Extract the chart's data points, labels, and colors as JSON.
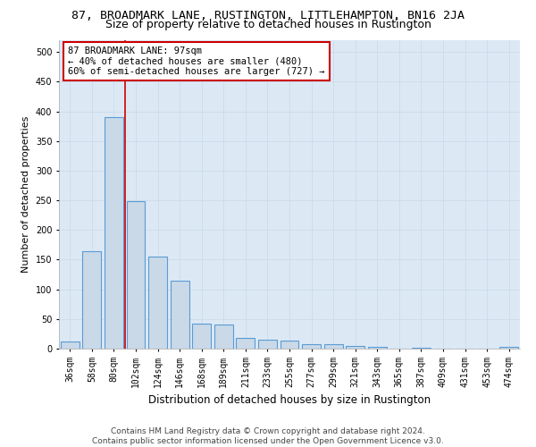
{
  "title": "87, BROADMARK LANE, RUSTINGTON, LITTLEHAMPTON, BN16 2JA",
  "subtitle": "Size of property relative to detached houses in Rustington",
  "xlabel": "Distribution of detached houses by size in Rustington",
  "ylabel": "Number of detached properties",
  "categories": [
    "36sqm",
    "58sqm",
    "80sqm",
    "102sqm",
    "124sqm",
    "146sqm",
    "168sqm",
    "189sqm",
    "211sqm",
    "233sqm",
    "255sqm",
    "277sqm",
    "299sqm",
    "321sqm",
    "343sqm",
    "365sqm",
    "387sqm",
    "409sqm",
    "431sqm",
    "453sqm",
    "474sqm"
  ],
  "values": [
    12,
    165,
    390,
    248,
    156,
    114,
    42,
    40,
    18,
    15,
    13,
    8,
    7,
    5,
    3,
    0,
    2,
    0,
    0,
    0,
    3
  ],
  "bar_color": "#c9d9e8",
  "bar_edgecolor": "#5b9bd5",
  "bar_linewidth": 0.8,
  "vline_color": "#cc0000",
  "vline_linewidth": 1.2,
  "annotation_text": "87 BROADMARK LANE: 97sqm\n← 40% of detached houses are smaller (480)\n60% of semi-detached houses are larger (727) →",
  "annotation_box_facecolor": "#ffffff",
  "annotation_box_edgecolor": "#cc0000",
  "ylim": [
    0,
    520
  ],
  "yticks": [
    0,
    50,
    100,
    150,
    200,
    250,
    300,
    350,
    400,
    450,
    500
  ],
  "grid_color": "#c8d8e8",
  "plot_background": "#dce9f5",
  "footer": "Contains HM Land Registry data © Crown copyright and database right 2024.\nContains public sector information licensed under the Open Government Licence v3.0.",
  "title_fontsize": 9.5,
  "subtitle_fontsize": 9,
  "xlabel_fontsize": 8.5,
  "ylabel_fontsize": 8,
  "tick_fontsize": 7,
  "annotation_fontsize": 7.5,
  "footer_fontsize": 6.5
}
